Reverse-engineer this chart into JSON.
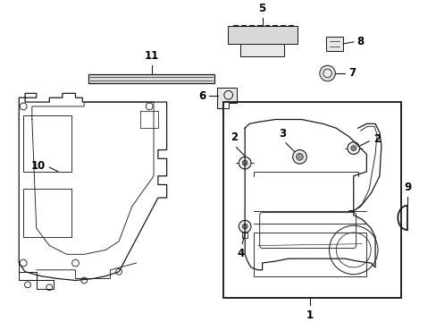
{
  "bg_color": "#ffffff",
  "line_color": "#1a1a1a",
  "label_color": "#000000",
  "border_color": "#000000",
  "fig_w": 4.89,
  "fig_h": 3.6,
  "dpi": 100
}
